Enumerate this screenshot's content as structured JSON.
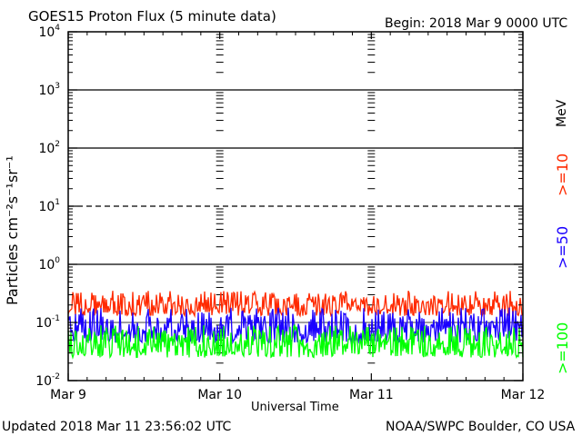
{
  "header": {
    "title": "GOES15 Proton Flux (5 minute data)",
    "begin": "Begin: 2018 Mar 9 0000 UTC"
  },
  "footer": {
    "updated": "Updated 2018 Mar 11 23:56:02 UTC",
    "credit": "NOAA/SWPC Boulder, CO USA"
  },
  "y_axis_label": "Particles cm⁻²s⁻¹sr⁻¹",
  "legend": {
    "unit": "MeV",
    "items": [
      {
        "label": ">=10",
        "color": "#ff2a00"
      },
      {
        "label": ">=50",
        "color": "#1a00ff"
      },
      {
        "label": ">=100",
        "color": "#00ff00"
      }
    ]
  },
  "chart_data": {
    "type": "line",
    "title": "GOES15 Proton Flux (5 minute data)",
    "xlabel": "Universal Time",
    "ylabel": "Particles cm⁻²s⁻¹sr⁻¹",
    "x_ticks": [
      "Mar 9",
      "Mar 10",
      "Mar 11",
      "Mar 12"
    ],
    "xlim": [
      "2018-03-09",
      "2018-03-12"
    ],
    "y_scale": "log",
    "ylim": [
      0.01,
      10000
    ],
    "y_ticks": [
      {
        "base": "10",
        "exp": "-2"
      },
      {
        "base": "10",
        "exp": "-1"
      },
      {
        "base": "10",
        "exp": "0"
      },
      {
        "base": "10",
        "exp": "1"
      },
      {
        "base": "10",
        "exp": "2"
      },
      {
        "base": "10",
        "exp": "3"
      },
      {
        "base": "10",
        "exp": "4"
      }
    ],
    "threshold_lines": [
      {
        "value": 10,
        "style": "dashed"
      },
      {
        "value": 1,
        "style": "solid"
      },
      {
        "value": 100,
        "style": "solid"
      },
      {
        "value": 1000,
        "style": "solid"
      }
    ],
    "series": [
      {
        "name": ">=10 MeV",
        "color": "#ff2a00",
        "typical_range": [
          0.13,
          0.35
        ]
      },
      {
        "name": ">=50 MeV",
        "color": "#1a00ff",
        "typical_range": [
          0.045,
          0.18
        ]
      },
      {
        "name": ">=100 MeV",
        "color": "#00ff00",
        "typical_range": [
          0.025,
          0.09
        ]
      }
    ]
  }
}
